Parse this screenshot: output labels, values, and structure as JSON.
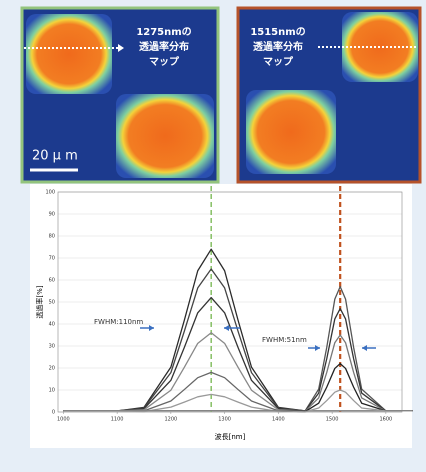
{
  "panels": [
    {
      "label_lines": [
        "1275nmの",
        "透過率分布",
        "マップ"
      ]
    },
    {
      "label_lines": [
        "1515nmの",
        "透過率分布",
        "マップ"
      ]
    }
  ],
  "scale_bar": "20 μ m",
  "chart_data": {
    "type": "line",
    "xlabel": "波長[nm]",
    "ylabel": "透過率[%]",
    "x": [
      1000,
      1100,
      1150,
      1200,
      1225,
      1250,
      1275,
      1300,
      1325,
      1350,
      1400,
      1450,
      1475,
      1490,
      1505,
      1515,
      1525,
      1540,
      1555,
      1600,
      1650
    ],
    "series": [
      {
        "color": "#2a2a2a",
        "values": [
          0.5,
          0.5,
          2.1,
          20.4,
          41.7,
          64.2,
          74,
          64.2,
          41.7,
          20.4,
          2.1,
          0.5,
          0.5,
          0.5,
          0.5,
          0.5,
          0.5,
          0.5,
          0.5,
          0.5,
          0.5
        ]
      },
      {
        "color": "#444444",
        "values": [
          0.5,
          0.5,
          1.8,
          17.9,
          36.7,
          56.4,
          65,
          56.4,
          36.7,
          17.9,
          1.8,
          0.5,
          0.5,
          0.5,
          0.5,
          0.5,
          0.5,
          0.5,
          0.5,
          0.5,
          0.5
        ]
      },
      {
        "color": "#333333",
        "values": [
          0.5,
          0.5,
          1.5,
          14.4,
          29.3,
          45.1,
          52,
          45.1,
          29.3,
          14.4,
          1.5,
          0.5,
          0.5,
          0.5,
          0.5,
          0.5,
          0.5,
          0.5,
          0.5,
          0.5,
          0.5
        ]
      },
      {
        "color": "#888888",
        "values": [
          0.5,
          0.5,
          1.0,
          9.9,
          20.3,
          31.2,
          36,
          31.2,
          20.3,
          9.9,
          1.0,
          0.5,
          0.5,
          0.5,
          0.5,
          0.5,
          0.5,
          0.5,
          0.5,
          0.5,
          0.5
        ]
      },
      {
        "color": "#666666",
        "values": [
          0.5,
          0.5,
          0.5,
          5.0,
          10.2,
          15.6,
          18,
          15.6,
          10.2,
          5.0,
          0.5,
          0.5,
          0.5,
          0.5,
          0.5,
          0.5,
          0.5,
          0.5,
          0.5,
          0.5,
          0.5
        ]
      },
      {
        "color": "#999999",
        "values": [
          0.5,
          0.5,
          0.2,
          2.2,
          4.5,
          6.9,
          8,
          6.9,
          4.5,
          2.2,
          0.2,
          0.5,
          0.5,
          0.5,
          0.5,
          0.5,
          0.5,
          0.5,
          0.5,
          0.5,
          0.5
        ]
      },
      {
        "color": "#555555",
        "values": [
          0.5,
          0.5,
          0.5,
          0.5,
          0.5,
          0.5,
          0.5,
          0.5,
          0.5,
          0.5,
          0.5,
          0.6,
          10.4,
          29.4,
          51.3,
          57,
          51.3,
          29.4,
          10.4,
          0.5,
          0.5
        ]
      },
      {
        "color": "#333333",
        "values": [
          0.5,
          0.5,
          0.5,
          0.5,
          0.5,
          0.5,
          0.5,
          0.5,
          0.5,
          0.5,
          0.5,
          0.5,
          8.6,
          24.2,
          42.3,
          47,
          42.3,
          24.2,
          8.6,
          0.5,
          0.5
        ]
      },
      {
        "color": "#777777",
        "values": [
          0.5,
          0.5,
          0.5,
          0.5,
          0.5,
          0.5,
          0.5,
          0.5,
          0.5,
          0.5,
          0.5,
          0.4,
          6.4,
          18.0,
          31.5,
          35,
          31.5,
          18.0,
          6.4,
          0.5,
          0.5
        ]
      },
      {
        "color": "#222222",
        "values": [
          0.5,
          0.5,
          0.5,
          0.5,
          0.5,
          0.5,
          0.5,
          0.5,
          0.5,
          0.5,
          0.5,
          0.2,
          4.0,
          11.3,
          19.8,
          22,
          19.8,
          11.3,
          4.0,
          0.5,
          0.5
        ]
      },
      {
        "color": "#999999",
        "values": [
          0.5,
          0.5,
          0.5,
          0.5,
          0.5,
          0.5,
          0.5,
          0.5,
          0.5,
          0.5,
          0.5,
          0.1,
          1.8,
          5.2,
          9.0,
          10,
          9.0,
          5.2,
          1.8,
          0.5,
          0.5
        ]
      }
    ],
    "vlines": [
      {
        "x": 1275,
        "color": "#7dbb5a"
      },
      {
        "x": 1515,
        "color": "#c0521e"
      }
    ],
    "annotations": [
      "FWHM:110nm",
      "FWHM:51nm"
    ],
    "xlim": [
      990,
      1630
    ],
    "xticks": [
      1000,
      1100,
      1200,
      1300,
      1400,
      1500,
      1600
    ],
    "ylim": [
      0,
      100
    ],
    "yticks": [
      0,
      10,
      20,
      30,
      40,
      50,
      60,
      70,
      80,
      90,
      100
    ],
    "grid": true
  }
}
